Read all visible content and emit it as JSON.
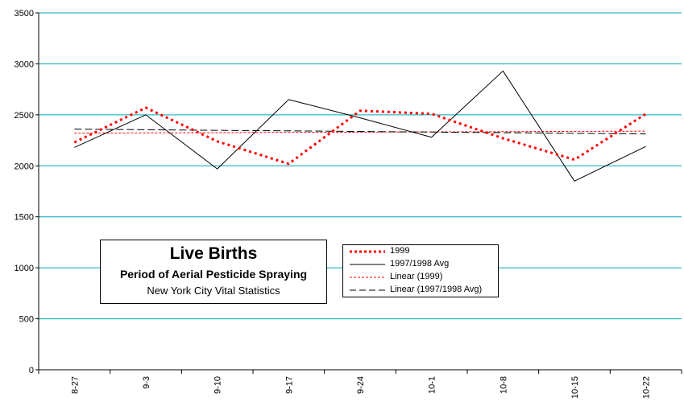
{
  "chart_data": {
    "type": "line",
    "categories": [
      "8-27",
      "9-3",
      "9-10",
      "9-17",
      "9-24",
      "10-1",
      "10-8",
      "10-15",
      "10-22"
    ],
    "ylim": [
      0,
      3500
    ],
    "yticks": [
      0,
      500,
      1000,
      1500,
      2000,
      2500,
      3000,
      3500
    ],
    "grid": true,
    "series": [
      {
        "name": "1999",
        "values": [
          2230,
          2570,
          2240,
          2020,
          2540,
          2510,
          2270,
          2060,
          2510
        ],
        "color": "#ff0000",
        "style": "dotted-thick"
      },
      {
        "name": "1997/1998 Avg",
        "values": [
          2180,
          2500,
          1970,
          2650,
          2470,
          2280,
          2930,
          1850,
          2190
        ],
        "color": "#000000",
        "style": "solid"
      },
      {
        "name": "Linear (1999)",
        "values": [
          2320,
          2323,
          2325,
          2328,
          2330,
          2333,
          2335,
          2338,
          2340
        ],
        "color": "#ff0000",
        "style": "dashed-thin"
      },
      {
        "name": "Linear (1997/1998 Avg)",
        "values": [
          2360,
          2354,
          2348,
          2343,
          2337,
          2331,
          2325,
          2319,
          2313
        ],
        "color": "#000000",
        "style": "dash-long"
      }
    ],
    "legend_position": "bottom-center",
    "title_box": {
      "title": "Live Births",
      "subtitle": "Period of Aerial Pesticide Spraying",
      "source": "New York City Vital Statistics"
    }
  }
}
